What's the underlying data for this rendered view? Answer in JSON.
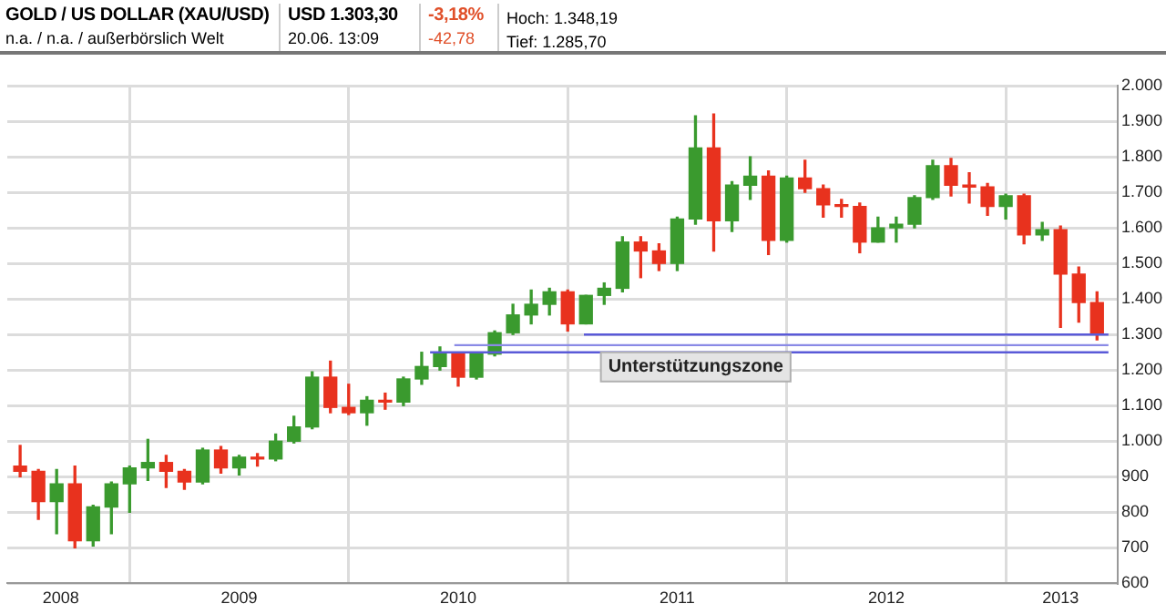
{
  "chart_data": {
    "type": "candlestick",
    "title": "GOLD / US DOLLAR (XAU/USD)",
    "subtitle": "n.a. / n.a. / außerbörslich Welt",
    "annotations": [
      "USD 1.303,30",
      "20.06. 13:09",
      "-3,18%",
      "-42,78",
      "Hoch: 1.348,19",
      "Tief: 1.285,70",
      "Unterstützungszone"
    ],
    "series": [
      {
        "x": [
          "2008-07",
          "2008-08",
          "2008-09",
          "2008-10",
          "2008-11",
          "2008-12",
          "2009-01",
          "2009-02",
          "2009-03",
          "2009-04",
          "2009-05",
          "2009-06",
          "2009-07",
          "2009-08",
          "2009-09",
          "2009-10",
          "2009-11",
          "2009-12",
          "2010-01",
          "2010-02",
          "2010-03",
          "2010-04",
          "2010-05",
          "2010-06",
          "2010-07",
          "2010-08",
          "2010-09",
          "2010-10",
          "2010-11",
          "2010-12",
          "2011-01",
          "2011-02",
          "2011-03",
          "2011-04",
          "2011-05",
          "2011-06",
          "2011-07",
          "2011-08",
          "2011-09",
          "2011-10",
          "2011-11",
          "2011-12",
          "2012-01",
          "2012-02",
          "2012-03",
          "2012-04",
          "2012-05",
          "2012-06",
          "2012-07",
          "2012-08",
          "2012-09",
          "2012-10",
          "2012-11",
          "2012-12",
          "2013-01",
          "2013-02",
          "2013-03",
          "2013-04",
          "2013-05",
          "2013-06"
        ],
        "ohlc": [
          [
            930,
            988,
            900,
            915
          ],
          [
            915,
            920,
            780,
            830
          ],
          [
            830,
            920,
            740,
            880
          ],
          [
            880,
            930,
            700,
            720
          ],
          [
            720,
            820,
            705,
            815
          ],
          [
            815,
            885,
            740,
            880
          ],
          [
            880,
            930,
            800,
            925
          ],
          [
            925,
            1005,
            890,
            940
          ],
          [
            940,
            960,
            870,
            915
          ],
          [
            915,
            920,
            865,
            885
          ],
          [
            885,
            980,
            880,
            975
          ],
          [
            975,
            985,
            910,
            925
          ],
          [
            925,
            960,
            905,
            955
          ],
          [
            955,
            965,
            930,
            950
          ],
          [
            950,
            1020,
            945,
            1000
          ],
          [
            1000,
            1070,
            995,
            1040
          ],
          [
            1040,
            1195,
            1035,
            1180
          ],
          [
            1180,
            1225,
            1080,
            1095
          ],
          [
            1095,
            1160,
            1075,
            1080
          ],
          [
            1080,
            1125,
            1045,
            1115
          ],
          [
            1115,
            1135,
            1090,
            1110
          ],
          [
            1110,
            1180,
            1100,
            1175
          ],
          [
            1175,
            1250,
            1160,
            1210
          ],
          [
            1210,
            1265,
            1200,
            1245
          ],
          [
            1245,
            1245,
            1155,
            1180
          ],
          [
            1180,
            1250,
            1175,
            1245
          ],
          [
            1245,
            1310,
            1240,
            1305
          ],
          [
            1305,
            1385,
            1300,
            1355
          ],
          [
            1355,
            1425,
            1330,
            1385
          ],
          [
            1385,
            1430,
            1355,
            1420
          ],
          [
            1420,
            1425,
            1310,
            1330
          ],
          [
            1330,
            1410,
            1330,
            1410
          ],
          [
            1410,
            1445,
            1385,
            1430
          ],
          [
            1430,
            1575,
            1420,
            1560
          ],
          [
            1560,
            1575,
            1460,
            1535
          ],
          [
            1535,
            1555,
            1480,
            1500
          ],
          [
            1500,
            1630,
            1480,
            1625
          ],
          [
            1625,
            1915,
            1610,
            1825
          ],
          [
            1825,
            1920,
            1535,
            1620
          ],
          [
            1620,
            1730,
            1590,
            1720
          ],
          [
            1720,
            1800,
            1680,
            1745
          ],
          [
            1745,
            1760,
            1525,
            1565
          ],
          [
            1565,
            1745,
            1560,
            1740
          ],
          [
            1740,
            1790,
            1700,
            1710
          ],
          [
            1710,
            1720,
            1630,
            1665
          ],
          [
            1665,
            1680,
            1630,
            1660
          ],
          [
            1660,
            1670,
            1530,
            1560
          ],
          [
            1560,
            1630,
            1560,
            1600
          ],
          [
            1600,
            1630,
            1560,
            1610
          ],
          [
            1610,
            1690,
            1600,
            1685
          ],
          [
            1685,
            1790,
            1680,
            1775
          ],
          [
            1775,
            1795,
            1690,
            1720
          ],
          [
            1720,
            1755,
            1670,
            1715
          ],
          [
            1715,
            1725,
            1635,
            1660
          ],
          [
            1660,
            1695,
            1625,
            1690
          ],
          [
            1690,
            1695,
            1555,
            1580
          ],
          [
            1580,
            1615,
            1565,
            1595
          ],
          [
            1595,
            1605,
            1320,
            1470
          ],
          [
            1470,
            1490,
            1335,
            1390
          ],
          [
            1390,
            1420,
            1285,
            1300
          ]
        ],
        "colors": [
          "#e8321e",
          "#e8321e",
          "#3a9a2e",
          "#e8321e",
          "#3a9a2e",
          "#3a9a2e",
          "#3a9a2e",
          "#3a9a2e",
          "#e8321e",
          "#e8321e",
          "#3a9a2e",
          "#e8321e",
          "#3a9a2e",
          "#e8321e",
          "#3a9a2e",
          "#3a9a2e",
          "#3a9a2e",
          "#e8321e",
          "#e8321e",
          "#3a9a2e",
          "#e8321e",
          "#3a9a2e",
          "#3a9a2e",
          "#3a9a2e",
          "#e8321e",
          "#3a9a2e",
          "#3a9a2e",
          "#3a9a2e",
          "#3a9a2e",
          "#3a9a2e",
          "#e8321e",
          "#3a9a2e",
          "#3a9a2e",
          "#3a9a2e",
          "#e8321e",
          "#e8321e",
          "#3a9a2e",
          "#3a9a2e",
          "#e8321e",
          "#3a9a2e",
          "#3a9a2e",
          "#e8321e",
          "#3a9a2e",
          "#e8321e",
          "#e8321e",
          "#e8321e",
          "#e8321e",
          "#3a9a2e",
          "#3a9a2e",
          "#3a9a2e",
          "#3a9a2e",
          "#e8321e",
          "#e8321e",
          "#e8321e",
          "#3a9a2e",
          "#e8321e",
          "#3a9a2e",
          "#e8321e",
          "#e8321e",
          "#e8321e"
        ]
      },
      {
        "type": "line",
        "x": [
          "2011-01-28",
          "2013-06-20"
        ],
        "values": [
          1300,
          1300
        ],
        "color": "#5a5ad8"
      },
      {
        "type": "line",
        "x": [
          "2010-06-25",
          "2013-06-20"
        ],
        "values": [
          1270,
          1270
        ],
        "color": "#8a8ae6"
      },
      {
        "type": "line",
        "x": [
          "2010-05-15",
          "2013-06-20"
        ],
        "values": [
          1250,
          1250
        ],
        "color": "#5a5ad8"
      }
    ],
    "xlim": [
      "2008-06-10",
      "2013-07-05"
    ],
    "xticks": [
      {
        "value": "2008-09-08",
        "label": "2008"
      },
      {
        "value": "2009",
        "label": null
      },
      {
        "value": "2009-07",
        "label": "2009"
      },
      {
        "value": "2010",
        "label": null
      },
      {
        "value": "2010-07",
        "label": "2010"
      },
      {
        "value": "2011",
        "label": null
      },
      {
        "value": "2011-07",
        "label": "2011"
      },
      {
        "value": "2012",
        "label": null
      },
      {
        "value": "2012-06-15",
        "label": "2012"
      },
      {
        "value": "2013",
        "label": null
      },
      {
        "value": "2013-04",
        "label": "2013"
      }
    ],
    "ylim": [
      600,
      2000
    ],
    "yticks": [
      {
        "value": 600,
        "label": "600"
      },
      {
        "value": 700,
        "label": "700"
      },
      {
        "value": 800,
        "label": "800"
      },
      {
        "value": 900,
        "label": "900"
      },
      {
        "value": 1000,
        "label": "1.000"
      },
      {
        "value": 1100,
        "label": "1.100"
      },
      {
        "value": 1200,
        "label": "1.200"
      },
      {
        "value": 1300,
        "label": "1.300"
      },
      {
        "value": 1400,
        "label": "1.400"
      },
      {
        "value": 1500,
        "label": "1.500"
      },
      {
        "value": 1600,
        "label": "1.600"
      },
      {
        "value": 1700,
        "label": "1.700"
      },
      {
        "value": 1800,
        "label": "1.800"
      },
      {
        "value": 1900,
        "label": "1.900"
      },
      {
        "value": 2000,
        "label": "2.000"
      }
    ],
    "grid": true,
    "legend": false
  }
}
